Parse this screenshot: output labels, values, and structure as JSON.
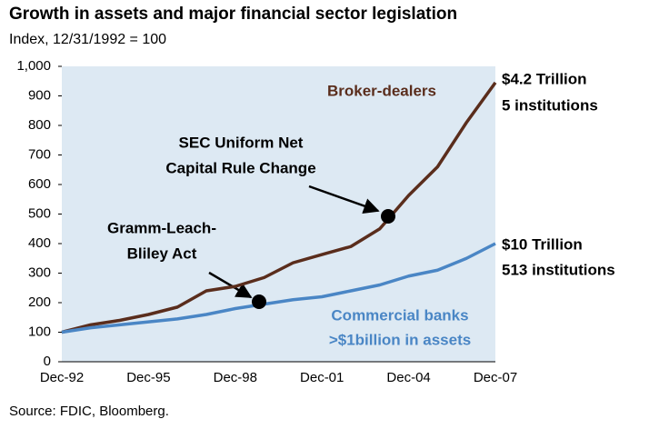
{
  "chart_data": {
    "type": "line",
    "title": "Growth in assets and major financial sector legislation",
    "subtitle": "Index, 12/31/1992 = 100",
    "source": "Source: FDIC, Bloomberg.",
    "categories": [
      "Dec-92",
      null,
      null,
      "Dec-95",
      null,
      null,
      "Dec-98",
      null,
      null,
      "Dec-01",
      null,
      null,
      "Dec-04",
      null,
      null,
      "Dec-07"
    ],
    "series": [
      {
        "name": "Broker-dealers",
        "color": "#5a2d1c",
        "values": [
          100,
          125,
          140,
          160,
          185,
          240,
          255,
          285,
          335,
          363,
          390,
          450,
          563,
          660,
          810,
          945
        ]
      },
      {
        "name": "Commercial banks",
        "color": "#4a86c5",
        "values": [
          100,
          115,
          125,
          135,
          145,
          160,
          180,
          195,
          210,
          220,
          240,
          260,
          290,
          310,
          350,
          400
        ]
      }
    ],
    "ylim": [
      0,
      1000
    ],
    "yticks": [
      0,
      100,
      200,
      300,
      400,
      500,
      600,
      700,
      800,
      900,
      {
        "value": 1000,
        "label": "1,000"
      }
    ],
    "annotations": [
      "SEC Uniform Net",
      "Capital Rule Change",
      "Gramm-Leach-",
      "Bliley Act",
      "$4.2 Trillion",
      "5 institutions",
      "$10 Trillion",
      "513 institutions",
      ">$1billion in assets"
    ]
  }
}
